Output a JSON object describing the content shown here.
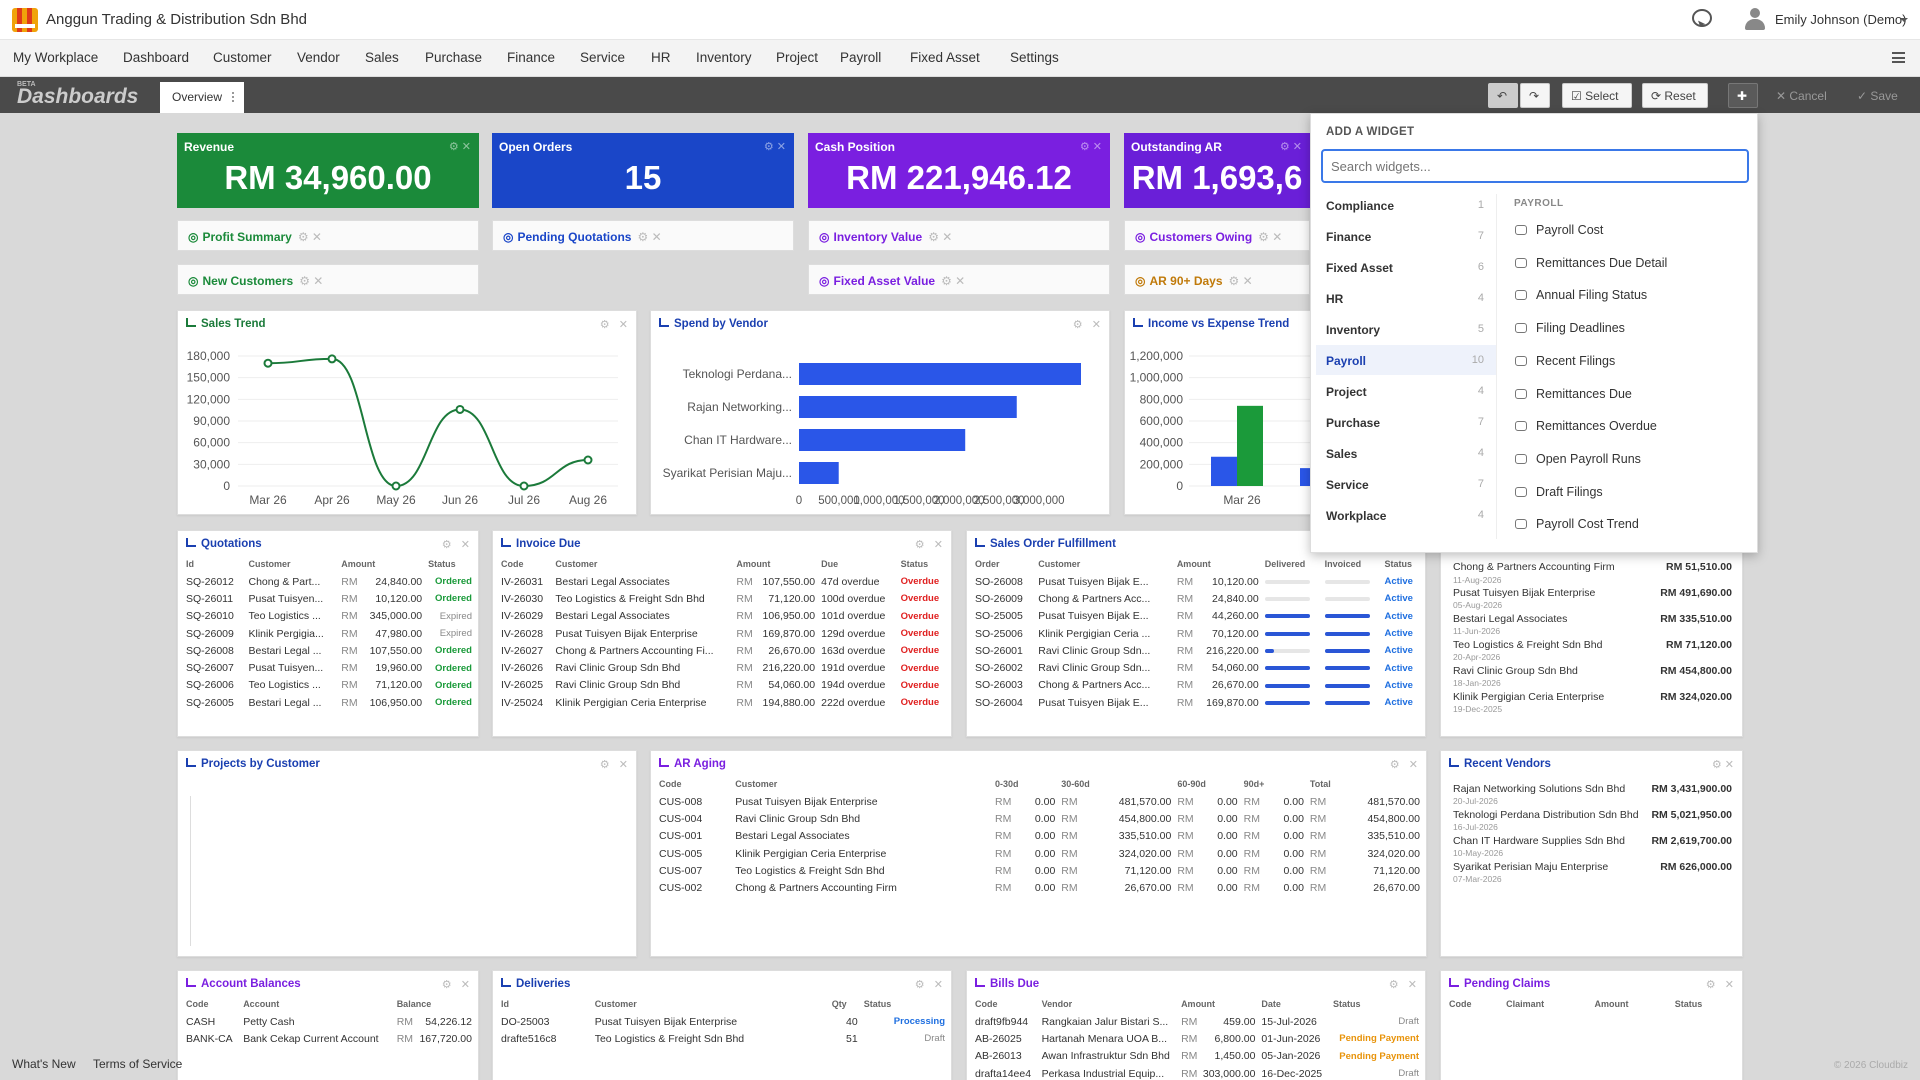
{
  "app": {
    "company": "Anggun Trading & Distribution Sdn Bhd",
    "user": "Emily Johnson (Demo)"
  },
  "menu": [
    "My Workplace",
    "Dashboard",
    "Customer",
    "Vendor",
    "Sales",
    "Purchase",
    "Finance",
    "Service",
    "HR",
    "Inventory",
    "Project",
    "Payroll",
    "Fixed Asset",
    "Settings"
  ],
  "dashbar": {
    "beta": "BETA",
    "title": "Dashboards",
    "tab": "Overview",
    "select": "Select",
    "reset": "Reset",
    "cancel": "Cancel",
    "save": "Save"
  },
  "kpis": [
    {
      "label": "Revenue",
      "value": "RM 34,960.00",
      "color": "#1b8a3a"
    },
    {
      "label": "Open Orders",
      "value": "15",
      "color": "#1a46c8"
    },
    {
      "label": "Cash Position",
      "value": "RM 221,946.12",
      "color": "#7a1fe0"
    },
    {
      "label": "Outstanding AR",
      "value": "RM 1,693,6",
      "color": "#6a1fd8"
    }
  ],
  "pills": [
    {
      "label": "Profit Summary",
      "color": "#1b8a3a"
    },
    {
      "label": "Pending Quotations",
      "color": "#1a46c8"
    },
    {
      "label": "Inventory Value",
      "color": "#7a1fe0"
    },
    {
      "label": "Customers Owing",
      "color": "#7a1fe0"
    },
    {
      "label": "New Customers",
      "color": "#1b8a3a"
    },
    {
      "label": "Fixed Asset Value",
      "color": "#7a1fe0"
    },
    {
      "label": "AR 90+ Days",
      "color": "#c07a0a"
    }
  ],
  "sales_trend": {
    "title": "Sales Trend",
    "chart_data": {
      "type": "line",
      "x": [
        "Mar 26",
        "Apr 26",
        "May 26",
        "Jun 26",
        "Jul 26",
        "Aug 26"
      ],
      "values": [
        170000,
        176000,
        0,
        106000,
        0,
        36000
      ],
      "ylim": [
        0,
        180000
      ],
      "yticks": [
        "180,000",
        "150,000",
        "120,000",
        "90,000",
        "60,000",
        "30,000",
        "0"
      ],
      "color": "#1b7a3a"
    }
  },
  "spend_vendor": {
    "title": "Spend by Vendor",
    "chart_data": {
      "type": "bar",
      "categories": [
        "Teknologi Perdana...",
        "Rajan Networking...",
        "Chan IT Hardware...",
        "Syarikat Perisian Maju..."
      ],
      "values": [
        5021950,
        3431900,
        2619700,
        626000
      ],
      "xlim": [
        0,
        6000000
      ],
      "xticks": [
        "0",
        "500,000",
        "1,000,000",
        "1,500,000",
        "2,000,000",
        "2,500,000",
        "3,000,000"
      ],
      "color": "#2a56e8"
    }
  },
  "income_expense": {
    "title": "Income vs Expense Trend",
    "chart_data": {
      "type": "bar",
      "categories": [
        "Mar 26"
      ],
      "series": [
        {
          "values": [
            270000
          ],
          "color": "#2a56e8"
        },
        {
          "values": [
            740000
          ],
          "color": "#1b9a3a"
        },
        {
          "values": [
            165000
          ],
          "color": "#2a56e8"
        }
      ],
      "ylim": [
        0,
        1200000
      ],
      "yticks": [
        "1,200,000",
        "1,000,000",
        "800,000",
        "600,000",
        "400,000",
        "200,000",
        "0"
      ]
    }
  },
  "quotations": {
    "title": "Quotations",
    "cols": [
      "Id",
      "Customer",
      "Amount",
      "Status"
    ],
    "rows": [
      [
        "SQ-26012",
        "Chong & Part...",
        "24,840.00",
        "Ordered"
      ],
      [
        "SQ-26011",
        "Pusat Tuisyen...",
        "10,120.00",
        "Ordered"
      ],
      [
        "SQ-26010",
        "Teo Logistics ...",
        "345,000.00",
        "Expired"
      ],
      [
        "SQ-26009",
        "Klinik Pergigia...",
        "47,980.00",
        "Expired"
      ],
      [
        "SQ-26008",
        "Bestari Legal ...",
        "107,550.00",
        "Ordered"
      ],
      [
        "SQ-26007",
        "Pusat Tuisyen...",
        "19,960.00",
        "Ordered"
      ],
      [
        "SQ-26006",
        "Teo Logistics ...",
        "71,120.00",
        "Ordered"
      ],
      [
        "SQ-26005",
        "Bestari Legal ...",
        "106,950.00",
        "Ordered"
      ]
    ]
  },
  "invoice_due": {
    "title": "Invoice Due",
    "cols": [
      "Code",
      "Customer",
      "Amount",
      "Due",
      "Status"
    ],
    "rows": [
      [
        "IV-26031",
        "Bestari Legal Associates",
        "107,550.00",
        "47d overdue",
        "Overdue"
      ],
      [
        "IV-26030",
        "Teo Logistics & Freight Sdn Bhd",
        "71,120.00",
        "100d overdue",
        "Overdue"
      ],
      [
        "IV-26029",
        "Bestari Legal Associates",
        "106,950.00",
        "101d overdue",
        "Overdue"
      ],
      [
        "IV-26028",
        "Pusat Tuisyen Bijak Enterprise",
        "169,870.00",
        "129d overdue",
        "Overdue"
      ],
      [
        "IV-26027",
        "Chong & Partners Accounting Fi...",
        "26,670.00",
        "163d overdue",
        "Overdue"
      ],
      [
        "IV-26026",
        "Ravi Clinic Group Sdn Bhd",
        "216,220.00",
        "191d overdue",
        "Overdue"
      ],
      [
        "IV-26025",
        "Ravi Clinic Group Sdn Bhd",
        "54,060.00",
        "194d overdue",
        "Overdue"
      ],
      [
        "IV-25024",
        "Klinik Pergigian Ceria Enterprise",
        "194,880.00",
        "222d overdue",
        "Overdue"
      ]
    ]
  },
  "sales_fulfillment": {
    "title": "Sales Order Fulfillment",
    "cols": [
      "Order",
      "Customer",
      "Amount",
      "Delivered",
      "Invoiced",
      "Status"
    ],
    "rows": [
      [
        "SO-26008",
        "Pusat Tuisyen Bijak E...",
        "10,120.00",
        0,
        0,
        "Active"
      ],
      [
        "SO-26009",
        "Chong & Partners Acc...",
        "24,840.00",
        0,
        0,
        "Active"
      ],
      [
        "SO-25005",
        "Pusat Tuisyen Bijak E...",
        "44,260.00",
        1,
        1,
        "Active"
      ],
      [
        "SO-25006",
        "Klinik Pergigian Ceria ...",
        "70,120.00",
        1,
        1,
        "Active"
      ],
      [
        "SO-26001",
        "Ravi Clinic Group Sdn...",
        "216,220.00",
        0.2,
        1,
        "Active"
      ],
      [
        "SO-26002",
        "Ravi Clinic Group Sdn...",
        "54,060.00",
        1,
        1,
        "Active"
      ],
      [
        "SO-26003",
        "Chong & Partners Acc...",
        "26,670.00",
        1,
        1,
        "Active"
      ],
      [
        "SO-26004",
        "Pusat Tuisyen Bijak E...",
        "169,870.00",
        1,
        1,
        "Active"
      ]
    ]
  },
  "recent_customers": [
    {
      "name": "Chong & Partners Accounting Firm",
      "date": "",
      "amt": "RM 51,510.00"
    },
    {
      "name": "",
      "date": "11-Aug-2026",
      "amt": ""
    },
    {
      "name": "Pusat Tuisyen Bijak Enterprise",
      "date": "05-Aug-2026",
      "amt": "RM 491,690.00"
    },
    {
      "name": "Bestari Legal Associates",
      "date": "11-Jun-2026",
      "amt": "RM 335,510.00"
    },
    {
      "name": "Teo Logistics & Freight Sdn Bhd",
      "date": "20-Apr-2026",
      "amt": "RM 71,120.00"
    },
    {
      "name": "Ravi Clinic Group Sdn Bhd",
      "date": "18-Jan-2026",
      "amt": "RM 454,800.00"
    },
    {
      "name": "Klinik Pergigian Ceria Enterprise",
      "date": "19-Dec-2025",
      "amt": "RM 324,020.00"
    }
  ],
  "projects": {
    "title": "Projects by Customer"
  },
  "ar_aging": {
    "title": "AR Aging",
    "cols": [
      "Code",
      "Customer",
      "0-30d",
      "30-60d",
      "60-90d",
      "90d+",
      "Total"
    ],
    "rows": [
      [
        "CUS-008",
        "Pusat Tuisyen Bijak Enterprise",
        "0.00",
        "481,570.00",
        "0.00",
        "0.00",
        "481,570.00"
      ],
      [
        "CUS-004",
        "Ravi Clinic Group Sdn Bhd",
        "0.00",
        "454,800.00",
        "0.00",
        "0.00",
        "454,800.00"
      ],
      [
        "CUS-001",
        "Bestari Legal Associates",
        "0.00",
        "335,510.00",
        "0.00",
        "0.00",
        "335,510.00"
      ],
      [
        "CUS-005",
        "Klinik Pergigian Ceria Enterprise",
        "0.00",
        "324,020.00",
        "0.00",
        "0.00",
        "324,020.00"
      ],
      [
        "CUS-007",
        "Teo Logistics & Freight Sdn Bhd",
        "0.00",
        "71,120.00",
        "0.00",
        "0.00",
        "71,120.00"
      ],
      [
        "CUS-002",
        "Chong & Partners Accounting Firm",
        "0.00",
        "26,670.00",
        "0.00",
        "0.00",
        "26,670.00"
      ]
    ]
  },
  "recent_vendors": {
    "title": "Recent Vendors",
    "rows": [
      {
        "name": "Rajan Networking Solutions Sdn Bhd",
        "date": "20-Jul-2026",
        "amt": "RM 3,431,900.00"
      },
      {
        "name": "Teknologi Perdana Distribution Sdn Bhd",
        "date": "16-Jul-2026",
        "amt": "RM 5,021,950.00"
      },
      {
        "name": "Chan IT Hardware Supplies Sdn Bhd",
        "date": "10-May-2026",
        "amt": "RM 2,619,700.00"
      },
      {
        "name": "Syarikat Perisian Maju Enterprise",
        "date": "07-Mar-2026",
        "amt": "RM 626,000.00"
      }
    ]
  },
  "account_balances": {
    "title": "Account Balances",
    "cols": [
      "Code",
      "Account",
      "Balance"
    ],
    "rows": [
      [
        "CASH",
        "Petty Cash",
        "54,226.12"
      ],
      [
        "BANK-CA",
        "Bank Cekap Current Account",
        "167,720.00"
      ]
    ]
  },
  "deliveries": {
    "title": "Deliveries",
    "cols": [
      "Id",
      "Customer",
      "Qty",
      "Status"
    ],
    "rows": [
      [
        "DO-25003",
        "Pusat Tuisyen Bijak Enterprise",
        "40",
        "Processing"
      ],
      [
        "drafte516c8",
        "Teo Logistics & Freight Sdn Bhd",
        "51",
        "Draft"
      ]
    ]
  },
  "bills_due": {
    "title": "Bills Due",
    "cols": [
      "Code",
      "Vendor",
      "Amount",
      "Date",
      "Status"
    ],
    "rows": [
      [
        "draft9fb944",
        "Rangkaian Jalur Bistari S...",
        "459.00",
        "15-Jul-2026",
        "Draft"
      ],
      [
        "AB-26025",
        "Hartanah Menara UOA B...",
        "6,800.00",
        "01-Jun-2026",
        "Pending Payment"
      ],
      [
        "AB-26013",
        "Awan Infrastruktur Sdn Bhd",
        "1,450.00",
        "05-Jan-2026",
        "Pending Payment"
      ],
      [
        "drafta14ee4",
        "Perkasa Industrial Equip...",
        "303,000.00",
        "16-Dec-2025",
        "Draft"
      ]
    ]
  },
  "pending_claims": {
    "title": "Pending Claims",
    "cols": [
      "Code",
      "Claimant",
      "Amount",
      "Status"
    ]
  },
  "widget_panel": {
    "header": "ADD A WIDGET",
    "placeholder": "Search widgets...",
    "section": "PAYROLL",
    "categories": [
      {
        "name": "Compliance",
        "n": "1"
      },
      {
        "name": "Finance",
        "n": "7"
      },
      {
        "name": "Fixed Asset",
        "n": "6"
      },
      {
        "name": "HR",
        "n": "4"
      },
      {
        "name": "Inventory",
        "n": "5"
      },
      {
        "name": "Payroll",
        "n": "10"
      },
      {
        "name": "Project",
        "n": "4"
      },
      {
        "name": "Purchase",
        "n": "7"
      },
      {
        "name": "Sales",
        "n": "4"
      },
      {
        "name": "Service",
        "n": "7"
      },
      {
        "name": "Workplace",
        "n": "4"
      }
    ],
    "items": [
      "Payroll Cost",
      "Remittances Due Detail",
      "Annual Filing Status",
      "Filing Deadlines",
      "Recent Filings",
      "Remittances Due",
      "Remittances Overdue",
      "Open Payroll Runs",
      "Draft Filings",
      "Payroll Cost Trend"
    ]
  },
  "footer": {
    "whats_new": "What's New",
    "terms": "Terms of Service",
    "copy": "© 2026 Cloudbiz"
  }
}
